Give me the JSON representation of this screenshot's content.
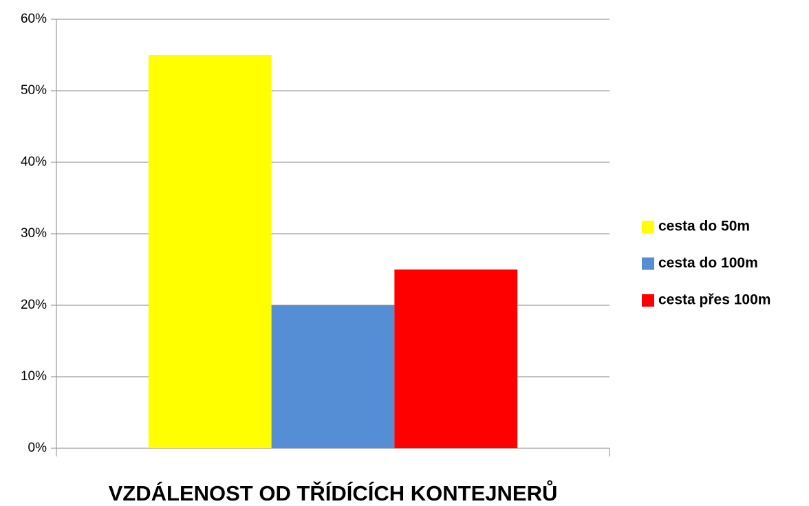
{
  "chart_data": {
    "type": "bar",
    "categories": [
      null
    ],
    "series": [
      {
        "name": "cesta do 50m",
        "color": "#ffff00",
        "values": [
          55
        ]
      },
      {
        "name": "cesta do 100m",
        "color": "#558ed5",
        "values": [
          20
        ]
      },
      {
        "name": "cesta přes 100m",
        "color": "#ff0000",
        "values": [
          25
        ]
      }
    ],
    "xlabel": "VZDÁLENOST OD TŘÍDÍCÍCH KONTEJNERŮ",
    "ylim": [
      0,
      60
    ],
    "yticks": [
      {
        "value": 0,
        "label": "0%"
      },
      {
        "value": 10,
        "label": "10%"
      },
      {
        "value": 20,
        "label": "20%"
      },
      {
        "value": 30,
        "label": "30%"
      },
      {
        "value": 40,
        "label": "40%"
      },
      {
        "value": 50,
        "label": "50%"
      },
      {
        "value": 60,
        "label": "60%"
      }
    ],
    "grid": true,
    "legend": "right"
  }
}
